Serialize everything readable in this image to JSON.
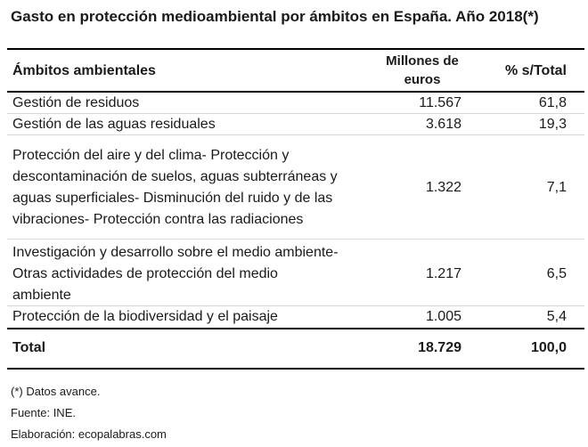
{
  "title": "Gasto en protección medioambiental por ámbitos en España. Año 2018(*)",
  "headers": {
    "col1": "Ámbitos ambientales",
    "col2_line1": "Millones de",
    "col2_line2": "euros",
    "col3": "% s/Total"
  },
  "rows": [
    {
      "lines": [
        "Gestión de residuos"
      ],
      "millones": "11.567",
      "pct": "61,8"
    },
    {
      "lines": [
        "Gestión de las aguas residuales"
      ],
      "millones": "3.618",
      "pct": "19,3"
    },
    {
      "lines": [
        "Protección del aire y del clima- Protección y",
        "descontaminación de suelos, aguas subterráneas y",
        "aguas superficiales- Disminución del ruido y de las",
        "vibraciones- Protección contra las radiaciones"
      ],
      "millones": "1.322",
      "pct": "7,1"
    },
    {
      "lines": [
        "Investigación y desarrollo sobre el medio ambiente-",
        "Otras actividades de protección del medio",
        "ambiente"
      ],
      "millones": "1.217",
      "pct": "6,5"
    },
    {
      "lines": [
        "Protección de la biodiversidad y el paisaje"
      ],
      "millones": "1.005",
      "pct": "5,4"
    }
  ],
  "total": {
    "label": "Total",
    "millones": "18.729",
    "pct": "100,0"
  },
  "notes": [
    "(*) Datos avance.",
    "Fuente: INE.",
    "Elaboración: ecopalabras.com"
  ]
}
